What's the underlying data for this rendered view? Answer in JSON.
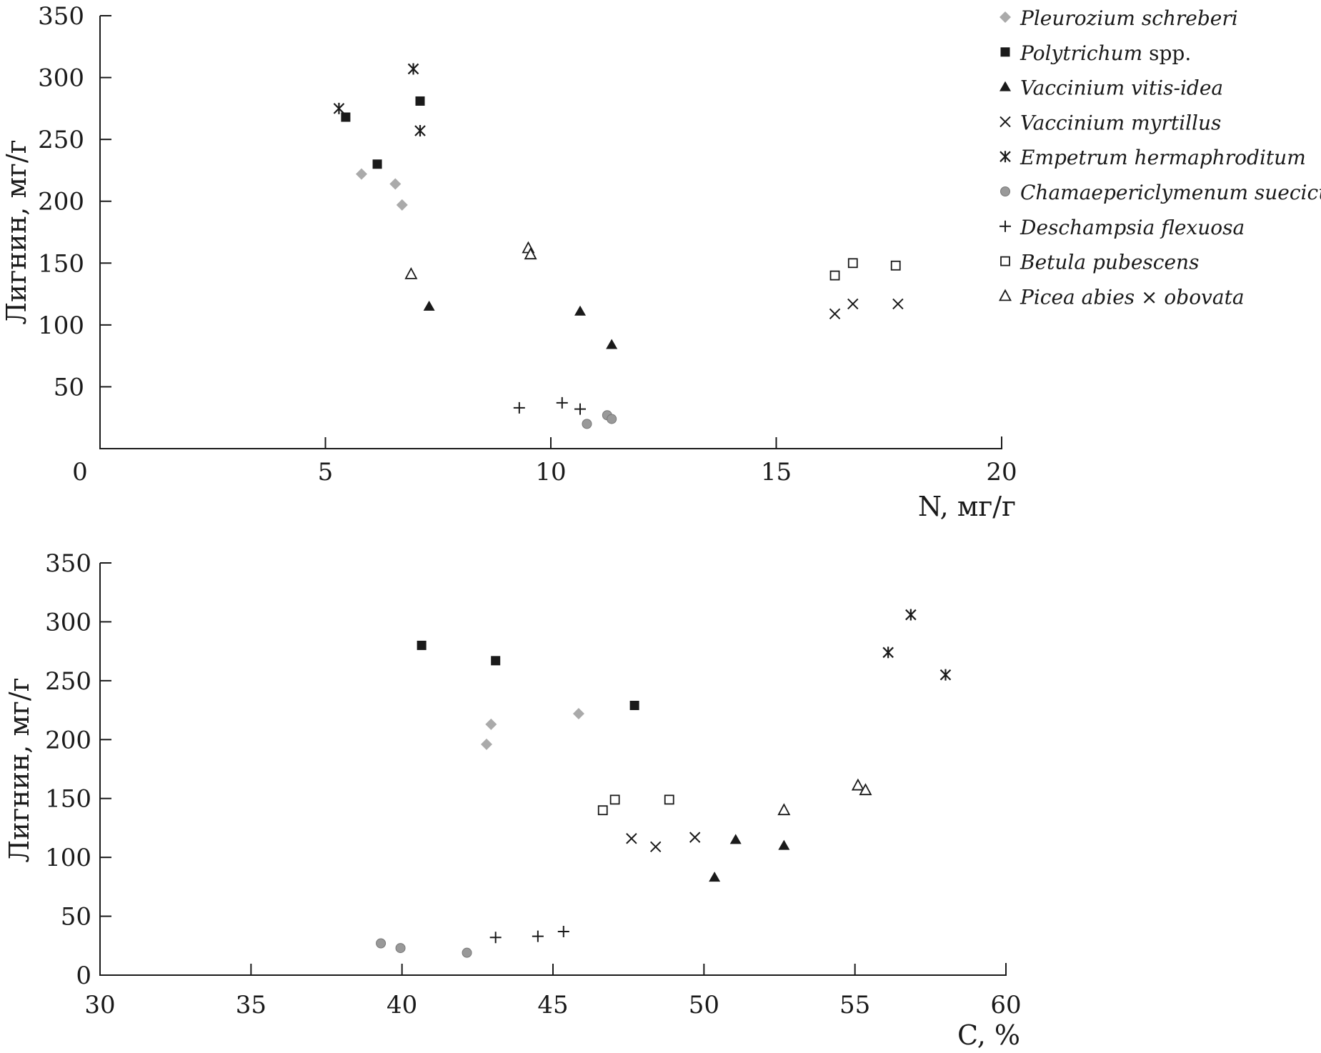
{
  "colors": {
    "dark": "#1a1a1a",
    "light_gray": "#aaaaaa",
    "mid_gray": "#999999",
    "gray_edge": "#777777"
  },
  "legend": [
    {
      "series": "Pleurozium schreberi",
      "italic": "Pleurozium schreberi",
      "suffix": "",
      "marker": "diamond"
    },
    {
      "series": "Polytrichum spp.",
      "italic": "Polytrichum",
      "suffix": " spp.",
      "marker": "square"
    },
    {
      "series": "Vaccinium vitis-idea",
      "italic": "Vaccinium vitis-idea",
      "suffix": "",
      "marker": "triangle"
    },
    {
      "series": "Vaccinium myrtillus",
      "italic": "Vaccinium myrtillus",
      "suffix": "",
      "marker": "x"
    },
    {
      "series": "Empetrum hermaphroditum",
      "italic": "Empetrum hermaphroditum",
      "suffix": "",
      "marker": "star"
    },
    {
      "series": "Chamaepericlymenum suecicum",
      "italic": "Chamaepericlymenum suecicum",
      "suffix": "",
      "marker": "circle"
    },
    {
      "series": "Deschampsia flexuosa",
      "italic": "Deschampsia flexuosa",
      "suffix": "",
      "marker": "plus"
    },
    {
      "series": "Betula pubescens",
      "italic": "Betula pubescens",
      "suffix": "",
      "marker": "open-square"
    },
    {
      "series": "Picea abies × obovata",
      "italic": "Picea abies",
      "suffix": " × ",
      "italic2": "obovata",
      "marker": "open-triangle"
    }
  ],
  "chart_data": [
    {
      "type": "scatter",
      "title": "",
      "xlabel": "N, мг/г",
      "ylabel": "Лигнин, мг/г",
      "xlim": [
        0,
        20
      ],
      "ylim": [
        0,
        350
      ],
      "xticks": [
        0,
        5,
        10,
        15,
        20
      ],
      "yticks": [
        50,
        100,
        150,
        200,
        250,
        300,
        350
      ],
      "grid": false,
      "legend_position": "top-right",
      "series": [
        {
          "name": "Pleurozium schreberi",
          "marker": "diamond",
          "points": [
            [
              5.8,
              222
            ],
            [
              6.55,
              214
            ],
            [
              6.7,
              197
            ]
          ]
        },
        {
          "name": "Polytrichum spp.",
          "marker": "square",
          "points": [
            [
              5.45,
              268
            ],
            [
              6.15,
              230
            ],
            [
              7.1,
              281
            ]
          ]
        },
        {
          "name": "Vaccinium vitis-idea",
          "marker": "triangle",
          "points": [
            [
              7.3,
              115
            ],
            [
              10.65,
              111
            ],
            [
              11.35,
              84
            ]
          ]
        },
        {
          "name": "Vaccinium myrtillus",
          "marker": "x",
          "points": [
            [
              16.3,
              109
            ],
            [
              16.7,
              117
            ],
            [
              17.7,
              117
            ]
          ]
        },
        {
          "name": "Empetrum hermaphroditum",
          "marker": "star",
          "points": [
            [
              5.3,
              275
            ],
            [
              6.95,
              307
            ],
            [
              7.1,
              257
            ]
          ]
        },
        {
          "name": "Chamaepericlymenum suecicum",
          "marker": "circle",
          "points": [
            [
              10.8,
              20
            ],
            [
              11.25,
              27
            ],
            [
              11.35,
              24
            ]
          ]
        },
        {
          "name": "Deschampsia flexuosa",
          "marker": "plus",
          "points": [
            [
              9.3,
              33
            ],
            [
              10.25,
              37
            ],
            [
              10.65,
              32
            ]
          ]
        },
        {
          "name": "Betula pubescens",
          "marker": "open-square",
          "points": [
            [
              16.3,
              140
            ],
            [
              16.7,
              150
            ],
            [
              17.65,
              148
            ]
          ]
        },
        {
          "name": "Picea abies × obovata",
          "marker": "open-triangle",
          "points": [
            [
              6.9,
              141
            ],
            [
              9.5,
              162
            ],
            [
              9.55,
              157
            ]
          ]
        }
      ]
    },
    {
      "type": "scatter",
      "title": "",
      "xlabel": "C, %",
      "ylabel": "Лигнин, мг/г",
      "xlim": [
        30,
        60
      ],
      "ylim": [
        0,
        350
      ],
      "xticks": [
        30,
        35,
        40,
        45,
        50,
        55,
        60
      ],
      "yticks": [
        0,
        50,
        100,
        150,
        200,
        250,
        300,
        350
      ],
      "grid": false,
      "series": [
        {
          "name": "Pleurozium schreberi",
          "marker": "diamond",
          "points": [
            [
              42.8,
              196
            ],
            [
              42.95,
              213
            ],
            [
              45.85,
              222
            ]
          ]
        },
        {
          "name": "Polytrichum spp.",
          "marker": "square",
          "points": [
            [
              40.65,
              280
            ],
            [
              43.1,
              267
            ],
            [
              47.7,
              229
            ]
          ]
        },
        {
          "name": "Vaccinium vitis-idea",
          "marker": "triangle",
          "points": [
            [
              50.35,
              83
            ],
            [
              51.05,
              115
            ],
            [
              52.65,
              110
            ]
          ]
        },
        {
          "name": "Vaccinium myrtillus",
          "marker": "x",
          "points": [
            [
              47.6,
              116
            ],
            [
              48.4,
              109
            ],
            [
              49.7,
              117
            ]
          ]
        },
        {
          "name": "Empetrum hermaphroditum",
          "marker": "star",
          "points": [
            [
              56.1,
              274
            ],
            [
              56.85,
              306
            ],
            [
              58.0,
              255
            ]
          ]
        },
        {
          "name": "Chamaepericlymenum suecicum",
          "marker": "circle",
          "points": [
            [
              39.3,
              27
            ],
            [
              39.95,
              23
            ],
            [
              42.15,
              19
            ]
          ]
        },
        {
          "name": "Deschampsia flexuosa",
          "marker": "plus",
          "points": [
            [
              43.1,
              32
            ],
            [
              44.5,
              33
            ],
            [
              45.35,
              37
            ]
          ]
        },
        {
          "name": "Betula pubescens",
          "marker": "open-square",
          "points": [
            [
              46.65,
              140
            ],
            [
              47.05,
              149
            ],
            [
              48.85,
              149
            ]
          ]
        },
        {
          "name": "Picea abies × obovata",
          "marker": "open-triangle",
          "points": [
            [
              52.65,
              140
            ],
            [
              55.1,
              161
            ],
            [
              55.35,
              157
            ]
          ]
        }
      ]
    }
  ]
}
